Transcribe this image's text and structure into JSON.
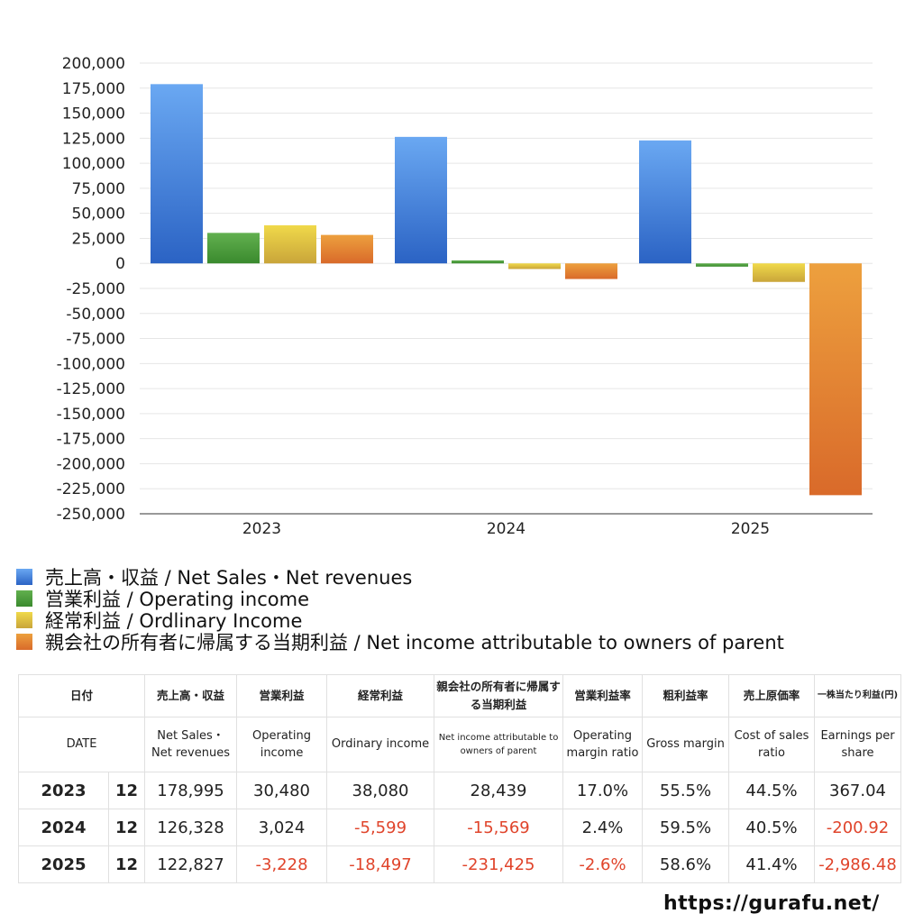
{
  "chart_data": {
    "type": "bar",
    "categories": [
      "2023",
      "2024",
      "2025"
    ],
    "series": [
      {
        "name": "売上高・収益 / Net Sales・Net revenues",
        "values": [
          178995,
          126328,
          122827
        ],
        "color": "#3a78d8"
      },
      {
        "name": "営業利益 / Operating income",
        "values": [
          30480,
          3024,
          -3228
        ],
        "color": "#4a9a3c"
      },
      {
        "name": "経常利益 / Ordlinary Income",
        "values": [
          38080,
          -5599,
          -18497
        ],
        "color": "#d9bf3a"
      },
      {
        "name": "親会社の所有者に帰属する当期利益 / Net income attributable to owners of parent",
        "values": [
          28439,
          -15569,
          -231425
        ],
        "color": "#e0782e"
      }
    ],
    "ylim": [
      -250000,
      200000
    ],
    "ytick_step": 25000,
    "ytick_labels": [
      "200,000",
      "175,000",
      "150,000",
      "125,000",
      "100,000",
      "75,000",
      "50,000",
      "25,000",
      "0",
      "-25,000",
      "-50,000",
      "-75,000",
      "-100,000",
      "-125,000",
      "-150,000",
      "-175,000",
      "-200,000",
      "-225,000",
      "-250,000"
    ],
    "grid": true,
    "legend_position": "bottom"
  },
  "table": {
    "header_jp": [
      "日付",
      "売上高・収益",
      "営業利益",
      "経常利益",
      "親会社の所有者に帰属する当期利益",
      "営業利益率",
      "粗利益率",
      "売上原価率",
      "一株当たり利益(円)"
    ],
    "header_en": [
      "DATE",
      "Net Sales・Net revenues",
      "Operating income",
      "Ordinary income",
      "Net income attributable to owners of parent",
      "Operating margin ratio",
      "Gross margin",
      "Cost of sales ratio",
      "Earnings per share"
    ],
    "rows": [
      {
        "year": "2023",
        "month": "12",
        "sales": "178,995",
        "op": "30,480",
        "ord": "38,080",
        "net": "28,439",
        "opm": "17.0%",
        "gm": "55.5%",
        "cos": "44.5%",
        "eps": "367.04"
      },
      {
        "year": "2024",
        "month": "12",
        "sales": "126,328",
        "op": "3,024",
        "ord": "-5,599",
        "net": "-15,569",
        "opm": "2.4%",
        "gm": "59.5%",
        "cos": "40.5%",
        "eps": "-200.92"
      },
      {
        "year": "2025",
        "month": "12",
        "sales": "122,827",
        "op": "-3,228",
        "ord": "-18,497",
        "net": "-231,425",
        "opm": "-2.6%",
        "gm": "58.6%",
        "cos": "41.4%",
        "eps": "-2,986.48"
      }
    ]
  },
  "site_url": "https://gurafu.net/"
}
